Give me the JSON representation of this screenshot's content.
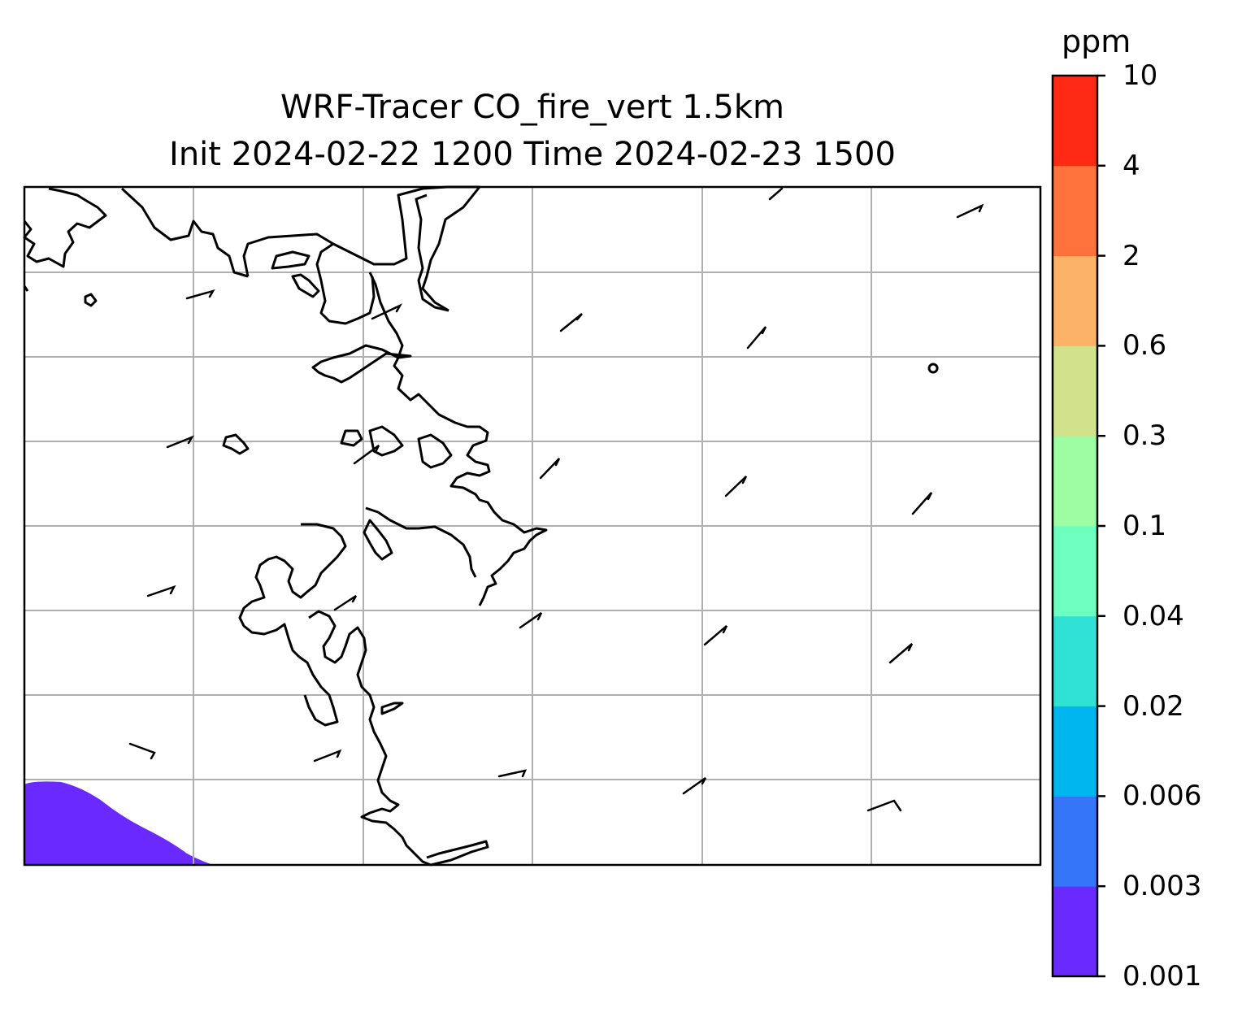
{
  "title": {
    "line1": "WRF-Tracer CO_fire_vert 1.5km",
    "line2": "Init 2024-02-22 1200 Time 2024-02-23 1500"
  },
  "colorbar": {
    "unit": "ppm",
    "levels": [
      "0.001",
      "0.003",
      "0.006",
      "0.02",
      "0.04",
      "0.1",
      "0.3",
      "0.6",
      "2",
      "4",
      "10"
    ],
    "colors": [
      "#6a2aff",
      "#3575f7",
      "#00b6ee",
      "#30e2d6",
      "#6cffc0",
      "#9cfda2",
      "#d1e28a",
      "#fdb367",
      "#ff723c",
      "#ff2a16"
    ]
  },
  "map": {
    "gridlines": true,
    "gridline_color": "#b0b0b0",
    "coastline_color": "#000000",
    "tracer_patch": {
      "level_index": 0,
      "location": "bottom-left corner"
    },
    "wind_barbs": 24
  }
}
